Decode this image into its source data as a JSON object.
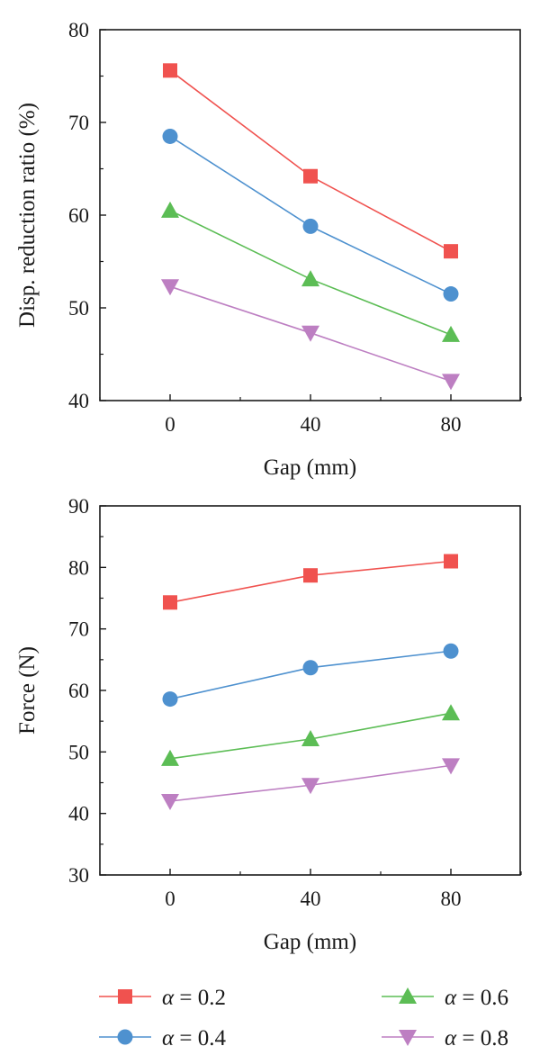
{
  "legend": {
    "symbol": "α",
    "entries": [
      {
        "series": "α = 0.2",
        "prefix": "α",
        "rest": " = 0.2",
        "color": "#f0524f",
        "marker": "square"
      },
      {
        "series": "α = 0.4",
        "prefix": "α",
        "rest": " = 0.4",
        "color": "#4e91cf",
        "marker": "circle"
      },
      {
        "series": "α = 0.6",
        "prefix": "α",
        "rest": " = 0.6",
        "color": "#5cbd55",
        "marker": "triangle-up"
      },
      {
        "series": "α = 0.8",
        "prefix": "α",
        "rest": " = 0.8",
        "color": "#bd7fc2",
        "marker": "triangle-down"
      }
    ]
  },
  "chart_data": [
    {
      "type": "line",
      "xlabel": "Gap (mm)",
      "ylabel": "Disp. reduction ratio (%)",
      "categories": [
        "0",
        "40",
        "80"
      ],
      "ylim": [
        40,
        80
      ],
      "yticks": [
        "40",
        "50",
        "60",
        "70",
        "80"
      ],
      "grid": false,
      "series": [
        {
          "name": "α = 0.2",
          "values": [
            75.6,
            64.2,
            56.1
          ]
        },
        {
          "name": "α = 0.4",
          "values": [
            68.5,
            58.8,
            51.5
          ]
        },
        {
          "name": "α = 0.6",
          "values": [
            60.5,
            53.1,
            47.1
          ]
        },
        {
          "name": "α = 0.8",
          "values": [
            52.3,
            47.3,
            42.1
          ]
        }
      ]
    },
    {
      "type": "line",
      "xlabel": "Gap (mm)",
      "ylabel": "Force (N)",
      "categories": [
        "0",
        "40",
        "80"
      ],
      "ylim": [
        30,
        90
      ],
      "yticks": [
        "30",
        "40",
        "50",
        "60",
        "70",
        "80",
        "90"
      ],
      "grid": false,
      "series": [
        {
          "name": "α = 0.2",
          "values": [
            74.3,
            78.7,
            81.0
          ]
        },
        {
          "name": "α = 0.4",
          "values": [
            58.6,
            63.7,
            66.4
          ]
        },
        {
          "name": "α = 0.6",
          "values": [
            48.9,
            52.1,
            56.3
          ]
        },
        {
          "name": "α = 0.8",
          "values": [
            42.0,
            44.6,
            47.8
          ]
        }
      ]
    }
  ]
}
